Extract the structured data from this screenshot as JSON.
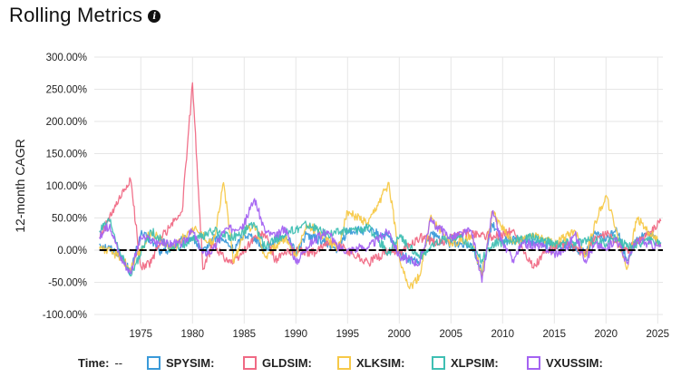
{
  "header": {
    "title": "Rolling Metrics"
  },
  "legend": {
    "time_label": "Time:",
    "time_value": "--"
  },
  "chart_data": {
    "type": "line",
    "ylabel": "12-month CAGR",
    "ylim": [
      -100,
      300
    ],
    "xlim": [
      1970.5,
      2025.5
    ],
    "y_ticks": [
      "-100.00%",
      "-50.00%",
      "0.00%",
      "50.00%",
      "100.00%",
      "150.00%",
      "200.00%",
      "250.00%",
      "300.00%"
    ],
    "x_ticks": [
      "1975",
      "1980",
      "1985",
      "1990",
      "1995",
      "2000",
      "2005",
      "2010",
      "2015",
      "2020",
      "2025"
    ],
    "grid": true,
    "zero_line": true,
    "legend_position": "bottom",
    "series": [
      {
        "name": "SPYSIM:",
        "color": "#3a9ad9",
        "values": [
          [
            1971,
            10
          ],
          [
            1973,
            -5
          ],
          [
            1974,
            -35
          ],
          [
            1975,
            25
          ],
          [
            1976,
            15
          ],
          [
            1977,
            -5
          ],
          [
            1979,
            15
          ],
          [
            1980,
            20
          ],
          [
            1981,
            -5
          ],
          [
            1982,
            20
          ],
          [
            1983,
            15
          ],
          [
            1984,
            0
          ],
          [
            1985,
            25
          ],
          [
            1986,
            20
          ],
          [
            1987,
            0
          ],
          [
            1988,
            15
          ],
          [
            1989,
            25
          ],
          [
            1990,
            -5
          ],
          [
            1991,
            25
          ],
          [
            1993,
            10
          ],
          [
            1994,
            0
          ],
          [
            1995,
            30
          ],
          [
            1997,
            30
          ],
          [
            1999,
            20
          ],
          [
            2000,
            -5
          ],
          [
            2001,
            -15
          ],
          [
            2002,
            -20
          ],
          [
            2003,
            25
          ],
          [
            2005,
            10
          ],
          [
            2007,
            10
          ],
          [
            2008,
            -35
          ],
          [
            2009,
            40
          ],
          [
            2010,
            15
          ],
          [
            2012,
            15
          ],
          [
            2014,
            12
          ],
          [
            2015,
            0
          ],
          [
            2016,
            10
          ],
          [
            2018,
            -5
          ],
          [
            2019,
            25
          ],
          [
            2020,
            15
          ],
          [
            2021,
            35
          ],
          [
            2022,
            -15
          ],
          [
            2023,
            20
          ],
          [
            2024,
            25
          ],
          [
            2025.3,
            12
          ]
        ]
      },
      {
        "name": "GLDSIM:",
        "color": "#f06a85",
        "values": [
          [
            1971,
            20
          ],
          [
            1973,
            80
          ],
          [
            1974,
            110
          ],
          [
            1975,
            -25
          ],
          [
            1976,
            -20
          ],
          [
            1977,
            20
          ],
          [
            1979,
            60
          ],
          [
            1980,
            260
          ],
          [
            1981,
            -30
          ],
          [
            1982,
            10
          ],
          [
            1983,
            -10
          ],
          [
            1984,
            -20
          ],
          [
            1985,
            0
          ],
          [
            1986,
            20
          ],
          [
            1987,
            25
          ],
          [
            1988,
            -15
          ],
          [
            1989,
            -5
          ],
          [
            1990,
            0
          ],
          [
            1992,
            -5
          ],
          [
            1993,
            15
          ],
          [
            1995,
            0
          ],
          [
            1997,
            -20
          ],
          [
            1999,
            0
          ],
          [
            2000,
            -5
          ],
          [
            2002,
            20
          ],
          [
            2004,
            10
          ],
          [
            2006,
            25
          ],
          [
            2008,
            25
          ],
          [
            2009,
            20
          ],
          [
            2011,
            30
          ],
          [
            2013,
            -28
          ],
          [
            2014,
            -5
          ],
          [
            2016,
            10
          ],
          [
            2018,
            -5
          ],
          [
            2019,
            20
          ],
          [
            2020,
            25
          ],
          [
            2022,
            0
          ],
          [
            2024,
            25
          ],
          [
            2025.3,
            45
          ]
        ]
      },
      {
        "name": "XLKSIM:",
        "color": "#f7c948",
        "values": [
          [
            1971,
            5
          ],
          [
            1973,
            -10
          ],
          [
            1974,
            -30
          ],
          [
            1976,
            30
          ],
          [
            1978,
            0
          ],
          [
            1980,
            35
          ],
          [
            1982,
            10
          ],
          [
            1983,
            105
          ],
          [
            1984,
            -20
          ],
          [
            1985,
            30
          ],
          [
            1986,
            40
          ],
          [
            1987,
            -10
          ],
          [
            1989,
            20
          ],
          [
            1990,
            -10
          ],
          [
            1991,
            40
          ],
          [
            1993,
            20
          ],
          [
            1994,
            0
          ],
          [
            1995,
            60
          ],
          [
            1997,
            40
          ],
          [
            1999,
            105
          ],
          [
            2000,
            -10
          ],
          [
            2001,
            -60
          ],
          [
            2002,
            -40
          ],
          [
            2003,
            50
          ],
          [
            2005,
            10
          ],
          [
            2007,
            20
          ],
          [
            2008,
            -40
          ],
          [
            2009,
            60
          ],
          [
            2011,
            10
          ],
          [
            2013,
            25
          ],
          [
            2015,
            10
          ],
          [
            2017,
            30
          ],
          [
            2018,
            -10
          ],
          [
            2019,
            45
          ],
          [
            2020,
            85
          ],
          [
            2021,
            30
          ],
          [
            2022,
            -30
          ],
          [
            2023,
            50
          ],
          [
            2024,
            30
          ],
          [
            2025.3,
            10
          ]
        ]
      },
      {
        "name": "XLPSIM:",
        "color": "#3fbfb3",
        "values": [
          [
            1971,
            30
          ],
          [
            1972,
            45
          ],
          [
            1973,
            -5
          ],
          [
            1974,
            -40
          ],
          [
            1976,
            30
          ],
          [
            1978,
            0
          ],
          [
            1980,
            15
          ],
          [
            1982,
            30
          ],
          [
            1984,
            20
          ],
          [
            1986,
            40
          ],
          [
            1987,
            5
          ],
          [
            1989,
            25
          ],
          [
            1991,
            40
          ],
          [
            1993,
            25
          ],
          [
            1995,
            30
          ],
          [
            1997,
            35
          ],
          [
            1999,
            -5
          ],
          [
            2000,
            20
          ],
          [
            2002,
            -10
          ],
          [
            2004,
            15
          ],
          [
            2006,
            20
          ],
          [
            2008,
            -15
          ],
          [
            2009,
            10
          ],
          [
            2011,
            15
          ],
          [
            2013,
            20
          ],
          [
            2015,
            10
          ],
          [
            2017,
            12
          ],
          [
            2019,
            15
          ],
          [
            2020,
            10
          ],
          [
            2021,
            20
          ],
          [
            2022,
            5
          ],
          [
            2024,
            15
          ],
          [
            2025.3,
            12
          ]
        ]
      },
      {
        "name": "VXUSSIM:",
        "color": "#a463f2",
        "values": [
          [
            1971,
            20
          ],
          [
            1972,
            40
          ],
          [
            1973,
            -10
          ],
          [
            1974,
            -35
          ],
          [
            1975,
            20
          ],
          [
            1977,
            10
          ],
          [
            1979,
            10
          ],
          [
            1980,
            30
          ],
          [
            1981,
            -5
          ],
          [
            1982,
            0
          ],
          [
            1983,
            30
          ],
          [
            1985,
            40
          ],
          [
            1986,
            80
          ],
          [
            1987,
            30
          ],
          [
            1988,
            20
          ],
          [
            1989,
            35
          ],
          [
            1990,
            -20
          ],
          [
            1991,
            5
          ],
          [
            1993,
            30
          ],
          [
            1994,
            5
          ],
          [
            1995,
            0
          ],
          [
            1997,
            5
          ],
          [
            1999,
            30
          ],
          [
            2000,
            -10
          ],
          [
            2002,
            -20
          ],
          [
            2003,
            45
          ],
          [
            2005,
            20
          ],
          [
            2007,
            30
          ],
          [
            2008,
            -50
          ],
          [
            2009,
            60
          ],
          [
            2010,
            10
          ],
          [
            2011,
            -15
          ],
          [
            2012,
            10
          ],
          [
            2014,
            5
          ],
          [
            2015,
            -5
          ],
          [
            2016,
            0
          ],
          [
            2017,
            25
          ],
          [
            2018,
            -15
          ],
          [
            2019,
            10
          ],
          [
            2020,
            0
          ],
          [
            2021,
            20
          ],
          [
            2022,
            -20
          ],
          [
            2023,
            15
          ],
          [
            2024,
            10
          ],
          [
            2025.3,
            5
          ]
        ]
      }
    ]
  }
}
